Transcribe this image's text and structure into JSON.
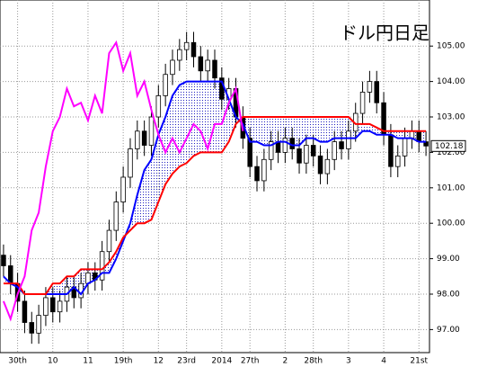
{
  "chart_data": {
    "type": "candlestick",
    "title": "ドル円日足",
    "categories": [
      null,
      null,
      "30th",
      null,
      null,
      null,
      null,
      "10",
      null,
      null,
      null,
      null,
      "11",
      null,
      null,
      null,
      null,
      "19th",
      null,
      null,
      null,
      null,
      "12",
      null,
      null,
      null,
      "23rd",
      null,
      null,
      null,
      null,
      "2014",
      null,
      null,
      null,
      "27th",
      null,
      null,
      null,
      null,
      "2",
      null,
      null,
      null,
      "28th",
      null,
      null,
      null,
      null,
      "3",
      null,
      null,
      null,
      null,
      "4",
      null,
      null,
      null,
      null,
      "21st",
      null
    ],
    "open": [
      99.1,
      98.8,
      98.3,
      97.8,
      97.2,
      96.9,
      97.4,
      97.9,
      97.5,
      97.8,
      98.2,
      97.9,
      98.3,
      98.6,
      98.4,
      99.2,
      99.8,
      100.6,
      101.3,
      102.1,
      102.6,
      102.2,
      103.0,
      103.6,
      104.2,
      104.6,
      104.9,
      105.1,
      104.7,
      104.3,
      104.6,
      104.1,
      103.5,
      103.8,
      103.0,
      102.4,
      101.6,
      101.2,
      101.8,
      102.3,
      102.0,
      102.4,
      102.1,
      101.7,
      102.2,
      101.9,
      101.4,
      101.8,
      102.3,
      102.1,
      102.6,
      103.1,
      103.7,
      104.0,
      103.4,
      102.5,
      101.6,
      101.9,
      102.4,
      102.6,
      102.3
    ],
    "high": [
      99.4,
      99.1,
      98.6,
      98.1,
      97.5,
      97.7,
      98.2,
      98.2,
      98.1,
      98.5,
      98.5,
      98.6,
      98.9,
      98.9,
      99.5,
      100.1,
      100.9,
      101.6,
      102.4,
      102.9,
      102.9,
      103.3,
      103.9,
      104.5,
      104.9,
      105.2,
      105.4,
      105.4,
      105.0,
      104.9,
      104.9,
      104.4,
      104.1,
      104.1,
      103.3,
      102.7,
      101.9,
      102.1,
      102.6,
      102.6,
      102.7,
      102.7,
      102.4,
      102.5,
      102.5,
      102.2,
      102.1,
      102.6,
      102.6,
      102.9,
      103.4,
      104.0,
      104.3,
      104.3,
      103.7,
      102.8,
      102.2,
      102.7,
      102.9,
      102.9,
      102.6
    ],
    "low": [
      98.5,
      98.0,
      97.5,
      96.9,
      96.6,
      96.6,
      97.1,
      97.2,
      97.2,
      97.5,
      97.6,
      97.6,
      98.0,
      98.1,
      98.1,
      98.9,
      99.5,
      100.3,
      101.0,
      101.8,
      101.9,
      101.9,
      102.7,
      103.3,
      103.9,
      104.3,
      104.6,
      104.4,
      104.0,
      104.0,
      103.8,
      103.2,
      103.2,
      102.7,
      102.1,
      101.3,
      100.9,
      100.9,
      101.5,
      101.7,
      101.7,
      101.8,
      101.4,
      101.4,
      101.6,
      101.1,
      101.1,
      101.5,
      101.8,
      101.8,
      102.3,
      102.8,
      103.4,
      103.1,
      102.2,
      101.3,
      101.3,
      101.6,
      102.1,
      102.0,
      101.9
    ],
    "close": [
      98.8,
      98.3,
      97.8,
      97.2,
      96.9,
      97.4,
      97.9,
      97.5,
      97.8,
      98.2,
      97.9,
      98.3,
      98.6,
      98.4,
      99.2,
      99.8,
      100.6,
      101.3,
      102.1,
      102.6,
      102.2,
      103.0,
      103.6,
      104.2,
      104.6,
      104.9,
      105.1,
      104.7,
      104.3,
      104.6,
      104.1,
      103.5,
      103.8,
      103.0,
      102.4,
      101.6,
      101.2,
      101.8,
      102.3,
      102.0,
      102.4,
      102.1,
      101.7,
      102.2,
      101.9,
      101.4,
      101.8,
      102.3,
      102.1,
      102.6,
      103.1,
      103.7,
      104.0,
      103.4,
      102.5,
      101.6,
      101.9,
      102.4,
      102.6,
      102.3,
      102.18
    ],
    "up_color": "#ffffff",
    "down_color": "#000000",
    "series": [
      {
        "color": "#0000ff",
        "values": [
          98.5,
          98.3,
          98.2,
          98.0,
          98.0,
          98.0,
          98.0,
          98.0,
          98.0,
          98.0,
          98.2,
          98.0,
          98.3,
          98.4,
          98.6,
          98.6,
          99.0,
          99.5,
          100.0,
          100.8,
          101.5,
          101.8,
          102.5,
          103.0,
          103.6,
          103.9,
          104.0,
          104.0,
          104.0,
          104.0,
          104.0,
          104.0,
          103.5,
          103.0,
          102.8,
          102.3,
          102.3,
          102.2,
          102.2,
          102.3,
          102.3,
          102.2,
          102.2,
          102.4,
          102.4,
          102.3,
          102.3,
          102.4,
          102.4,
          102.4,
          102.4,
          102.6,
          102.6,
          102.5,
          102.5,
          102.5,
          102.4,
          102.4,
          102.4,
          102.3,
          102.3
        ]
      },
      {
        "color": "#ff0000",
        "values": [
          98.3,
          98.3,
          98.3,
          98.0,
          98.0,
          98.0,
          98.0,
          98.3,
          98.3,
          98.5,
          98.5,
          98.7,
          98.7,
          98.7,
          98.7,
          98.9,
          99.2,
          99.6,
          99.8,
          100.0,
          100.0,
          100.1,
          100.6,
          101.1,
          101.4,
          101.6,
          101.7,
          101.9,
          102.0,
          102.0,
          102.0,
          102.0,
          102.3,
          102.8,
          103.0,
          103.0,
          103.0,
          103.0,
          103.0,
          103.0,
          103.0,
          103.0,
          103.0,
          103.0,
          103.0,
          103.0,
          103.0,
          103.0,
          103.0,
          103.0,
          102.8,
          102.8,
          102.8,
          102.7,
          102.6,
          102.6,
          102.6,
          102.6,
          102.6,
          102.6,
          102.6
        ]
      },
      {
        "color": "#ff00ff",
        "values": [
          97.8,
          97.3,
          98.0,
          98.5,
          99.8,
          100.3,
          101.6,
          102.6,
          103.0,
          103.8,
          103.3,
          103.4,
          102.9,
          103.6,
          103.1,
          104.8,
          105.1,
          104.3,
          104.8,
          103.6,
          104.0,
          103.2,
          102.5,
          102.0,
          102.4,
          102.0,
          102.4,
          102.8,
          102.6,
          102.1,
          102.8,
          102.8,
          103.4,
          103.8,
          102.6,
          null,
          null,
          null,
          null,
          null,
          null,
          null,
          null,
          null,
          null,
          null,
          null,
          null,
          null,
          null,
          null,
          null,
          null,
          null,
          null,
          null,
          null,
          null,
          null,
          null,
          null
        ]
      }
    ],
    "cloud_color": "#2020c0",
    "ylim": [
      96.35,
      106.3
    ],
    "yticks": [
      {
        "value": 97,
        "label": "97.00"
      },
      {
        "value": 98,
        "label": "98.00"
      },
      {
        "value": 99,
        "label": "99.00"
      },
      {
        "value": 100,
        "label": "100.00"
      },
      {
        "value": 101,
        "label": "101.00"
      },
      {
        "value": 102,
        "label": "102.00"
      },
      {
        "value": 103,
        "label": "103.00"
      },
      {
        "value": 104,
        "label": "104.00"
      },
      {
        "value": 105,
        "label": "105.00"
      }
    ],
    "grid": true
  }
}
